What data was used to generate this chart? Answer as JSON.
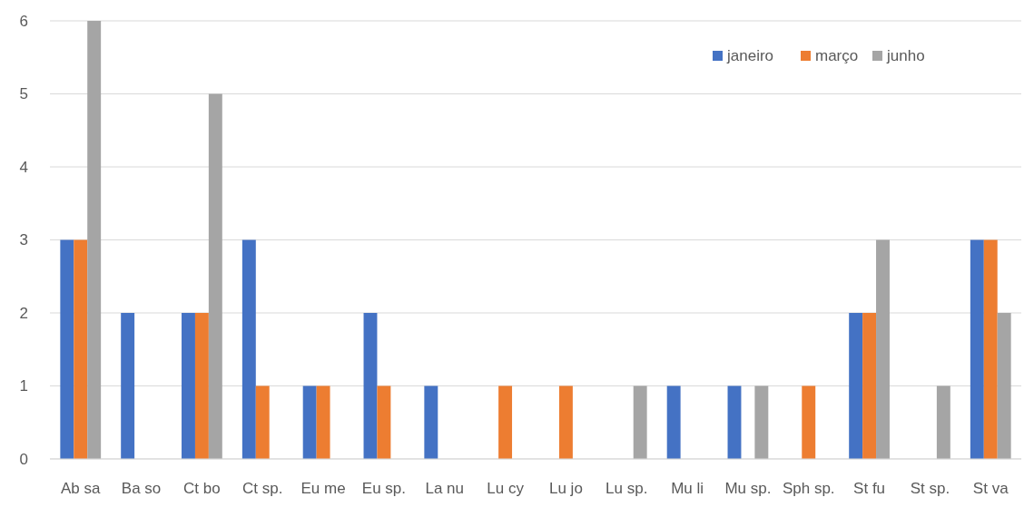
{
  "chart_data": {
    "type": "bar",
    "categories": [
      "Ab sa",
      "Ba so",
      "Ct bo",
      "Ct sp.",
      "Eu me",
      "Eu sp.",
      "La nu",
      "Lu cy",
      "Lu jo",
      "Lu sp.",
      "Mu li",
      "Mu sp.",
      "Sph sp.",
      "St fu",
      "St sp.",
      "St va"
    ],
    "series": [
      {
        "name": "janeiro",
        "color": "#4472c4",
        "values": [
          3,
          2,
          2,
          3,
          1,
          2,
          1,
          0,
          0,
          0,
          1,
          1,
          0,
          2,
          0,
          3
        ]
      },
      {
        "name": "março",
        "color": "#ed7d31",
        "values": [
          3,
          0,
          2,
          1,
          1,
          1,
          0,
          1,
          1,
          0,
          0,
          0,
          1,
          2,
          0,
          3
        ]
      },
      {
        "name": "junho",
        "color": "#a5a5a5",
        "values": [
          6,
          0,
          5,
          0,
          0,
          0,
          0,
          0,
          0,
          1,
          0,
          1,
          0,
          3,
          1,
          2
        ]
      }
    ],
    "ylim": [
      0,
      6
    ],
    "yticks": [
      0,
      1,
      2,
      3,
      4,
      5,
      6
    ],
    "grid": "y",
    "legend": "top right"
  }
}
